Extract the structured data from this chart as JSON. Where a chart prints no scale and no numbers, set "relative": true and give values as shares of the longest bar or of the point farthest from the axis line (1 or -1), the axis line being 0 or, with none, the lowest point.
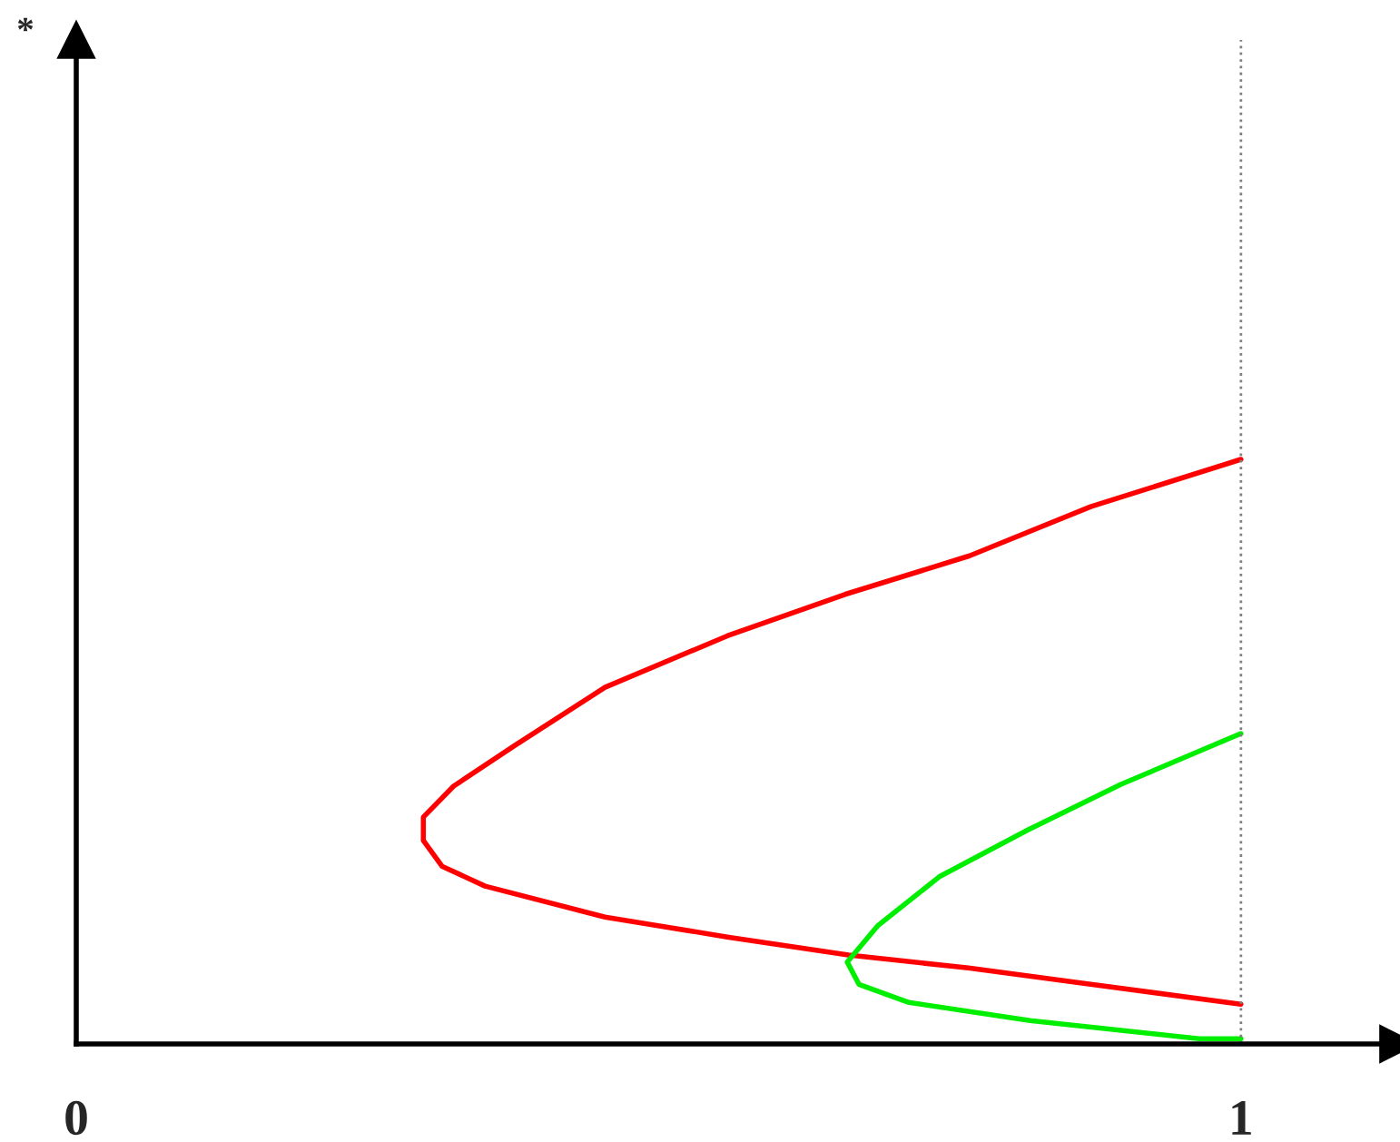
{
  "chart_data": {
    "type": "line",
    "relative": true,
    "annotations": [
      "*"
    ],
    "xlim": [
      0,
      1.135
    ],
    "xticks": [
      0,
      1
    ],
    "tick_labels": "x",
    "grid": false,
    "legend": false,
    "marker": "none",
    "line_style": "solid",
    "series": [
      {
        "color": "#ff0000",
        "x": [
          1.0,
          0.871,
          0.767,
          0.66,
          0.559,
          0.454,
          0.376,
          0.324,
          0.298,
          0.298,
          0.314,
          0.351,
          0.454,
          0.559,
          0.663,
          0.766,
          0.871,
          1.0
        ],
        "values": [
          1.0,
          0.919,
          0.835,
          0.769,
          0.698,
          0.61,
          0.51,
          0.441,
          0.388,
          0.348,
          0.304,
          0.27,
          0.217,
          0.183,
          0.152,
          0.13,
          0.102,
          0.068
        ]
      },
      {
        "color": "#00ee00",
        "x": [
          1.0,
          0.897,
          0.817,
          0.741,
          0.688,
          0.662,
          0.672,
          0.715,
          0.819,
          0.964,
          1.0
        ],
        "values": [
          0.531,
          0.444,
          0.366,
          0.286,
          0.202,
          0.14,
          0.102,
          0.071,
          0.04,
          0.009,
          0.009
        ]
      }
    ],
    "ref_lines": [
      {
        "axis": "x",
        "value": 1,
        "color": "#808080",
        "line_style": "dotted"
      }
    ]
  }
}
